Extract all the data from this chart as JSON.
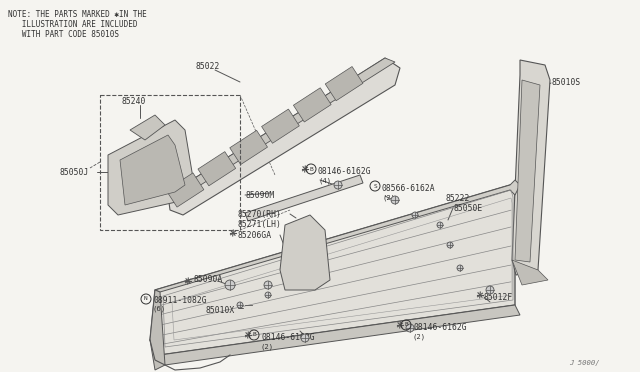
{
  "bg_color": "#f5f4f0",
  "line_color": "#555555",
  "text_color": "#333333",
  "note_lines": [
    "NOTE: THE PARTS MARKED ✱IN THE",
    "   ILLUSTRATION ARE INCLUDED",
    "   WITH PART CODE 85010S"
  ],
  "part_code": "J 5000/",
  "fs": 5.8,
  "fs_sub": 5.2
}
